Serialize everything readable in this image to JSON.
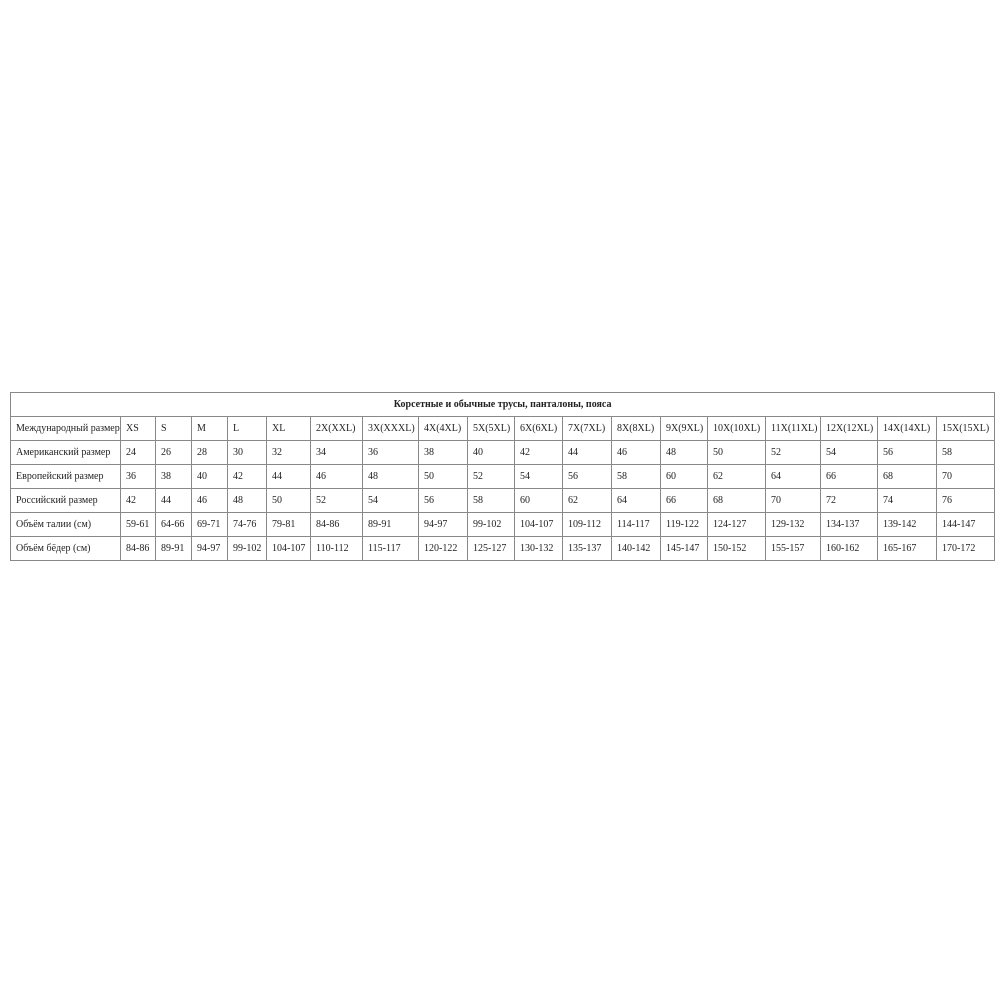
{
  "title": "Корсетные и обычные трусы, панталоны, пояса",
  "rows": [
    {
      "label": "Международный размер",
      "values": [
        "XS",
        "S",
        "M",
        "L",
        "XL",
        "2X(XXL)",
        "3X(XXXL)",
        "4X(4XL)",
        "5X(5XL)",
        "6X(6XL)",
        "7X(7XL)",
        "8X(8XL)",
        "9X(9XL)",
        "10X(10XL)",
        "11X(11XL)",
        "12X(12XL)",
        "14X(14XL)",
        "15X(15XL)"
      ]
    },
    {
      "label": "Американский размер",
      "values": [
        "24",
        "26",
        "28",
        "30",
        "32",
        "34",
        "36",
        "38",
        "40",
        "42",
        "44",
        "46",
        "48",
        "50",
        "52",
        "54",
        "56",
        "58"
      ]
    },
    {
      "label": "Европейский размер",
      "values": [
        "36",
        "38",
        "40",
        "42",
        "44",
        "46",
        "48",
        "50",
        "52",
        "54",
        "56",
        "58",
        "60",
        "62",
        "64",
        "66",
        "68",
        "70"
      ]
    },
    {
      "label": "Российский размер",
      "values": [
        "42",
        "44",
        "46",
        "48",
        "50",
        "52",
        "54",
        "56",
        "58",
        "60",
        "62",
        "64",
        "66",
        "68",
        "70",
        "72",
        "74",
        "76"
      ]
    },
    {
      "label": "Объём талии (см)",
      "values": [
        "59-61",
        "64-66",
        "69-71",
        "74-76",
        "79-81",
        "84-86",
        "89-91",
        "94-97",
        "99-102",
        "104-107",
        "109-112",
        "114-117",
        "119-122",
        "124-127",
        "129-132",
        "134-137",
        "139-142",
        "144-147"
      ]
    },
    {
      "label": "Объём бёдер (см)",
      "values": [
        "84-86",
        "89-91",
        "94-97",
        "99-102",
        "104-107",
        "110-112",
        "115-117",
        "120-122",
        "125-127",
        "130-132",
        "135-137",
        "140-142",
        "145-147",
        "150-152",
        "155-157",
        "160-162",
        "165-167",
        "170-172"
      ]
    }
  ]
}
